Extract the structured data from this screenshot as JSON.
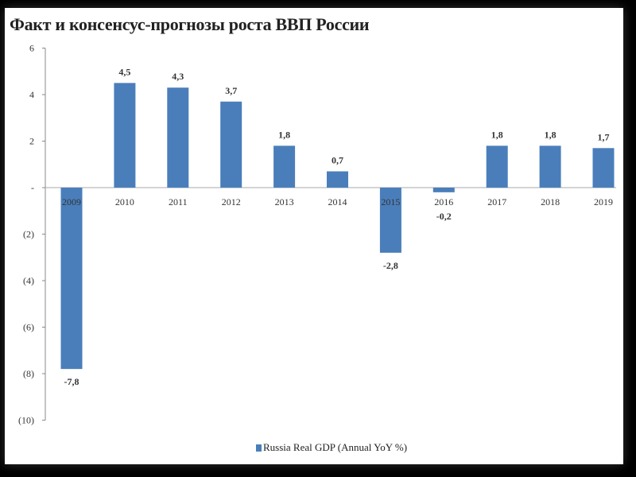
{
  "chart_data": {
    "type": "bar",
    "title": "Факт и консенсус-прогнозы роста ВВП России",
    "categories": [
      "2009",
      "2010",
      "2011",
      "2012",
      "2013",
      "2014",
      "2015",
      "2016",
      "2017",
      "2018",
      "2019"
    ],
    "series": [
      {
        "name": "Russia Real GDP (Annual YoY %)",
        "values": [
          -7.8,
          4.5,
          4.3,
          3.7,
          1.8,
          0.7,
          -2.8,
          -0.2,
          1.8,
          1.8,
          1.7
        ],
        "color": "#4a7ebb"
      }
    ],
    "data_labels": [
      "-7,8",
      "4,5",
      "4,3",
      "3,7",
      "1,8",
      "0,7",
      "-2,8",
      "-0,2",
      "1,8",
      "1,8",
      "1,7"
    ],
    "yticks": [
      6,
      4,
      2,
      0,
      -2,
      -4,
      -6,
      -8,
      -10
    ],
    "ytick_labels": [
      "6",
      "4",
      "2",
      "-",
      "(2)",
      "(4)",
      "(6)",
      "(8)",
      "(10)"
    ],
    "ylim": [
      -10,
      6
    ],
    "xlabel": "",
    "ylabel": "",
    "grid": false,
    "legend_position": "bottom"
  }
}
